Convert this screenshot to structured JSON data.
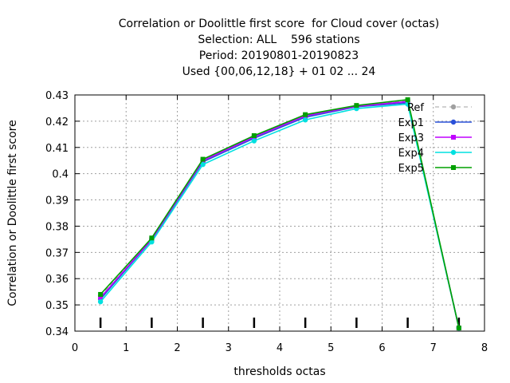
{
  "chart_data": {
    "type": "line",
    "title_lines": [
      "Correlation or Doolittle first score  for Cloud cover (octas)",
      "Selection: ALL    596 stations",
      "Period: 20190801-20190823",
      "Used {00,06,12,18} + 01 02 ... 24"
    ],
    "xlabel": "thresholds octas",
    "ylabel": "Correlation or Doolittle first score",
    "xlim": [
      0,
      8
    ],
    "ylim": [
      0.34,
      0.43
    ],
    "xticks": [
      "0",
      "1",
      "2",
      "3",
      "4",
      "5",
      "6",
      "7",
      "8"
    ],
    "yticks": [
      "0.34",
      "0.35",
      "0.36",
      "0.37",
      "0.38",
      "0.39",
      "0.4",
      "0.41",
      "0.42",
      "0.43"
    ],
    "grid": true,
    "legend_position": "top-right",
    "sample_marks_x": [
      0.5,
      1.5,
      2.5,
      3.5,
      4.5,
      5.5,
      6.5,
      7.5
    ],
    "x": [
      0.5,
      1.5,
      2.5,
      3.5,
      4.5,
      5.5,
      6.5,
      7.5
    ],
    "series": [
      {
        "name": "Ref",
        "color": "#a0a0a0",
        "dashed": true,
        "marker": "circle",
        "values": [
          0.3535,
          0.3752,
          0.4052,
          0.4142,
          0.4222,
          0.4258,
          0.4278,
          0.3412
        ]
      },
      {
        "name": "Exp1",
        "color": "#2a50d8",
        "dashed": false,
        "marker": "circle",
        "values": [
          0.3522,
          0.3748,
          0.4045,
          0.4135,
          0.4215,
          0.4255,
          0.427,
          0.3412
        ]
      },
      {
        "name": "Exp3",
        "color": "#c000ff",
        "dashed": false,
        "marker": "square",
        "values": [
          0.3528,
          0.375,
          0.405,
          0.414,
          0.422,
          0.4257,
          0.4275,
          0.3412
        ]
      },
      {
        "name": "Exp4",
        "color": "#00e0e0",
        "dashed": false,
        "marker": "circle",
        "values": [
          0.3512,
          0.374,
          0.4035,
          0.4125,
          0.4205,
          0.4248,
          0.4265,
          0.3412
        ]
      },
      {
        "name": "Exp5",
        "color": "#00a000",
        "dashed": false,
        "marker": "square",
        "values": [
          0.354,
          0.3755,
          0.4055,
          0.4145,
          0.4225,
          0.426,
          0.4282,
          0.3412
        ]
      }
    ]
  }
}
